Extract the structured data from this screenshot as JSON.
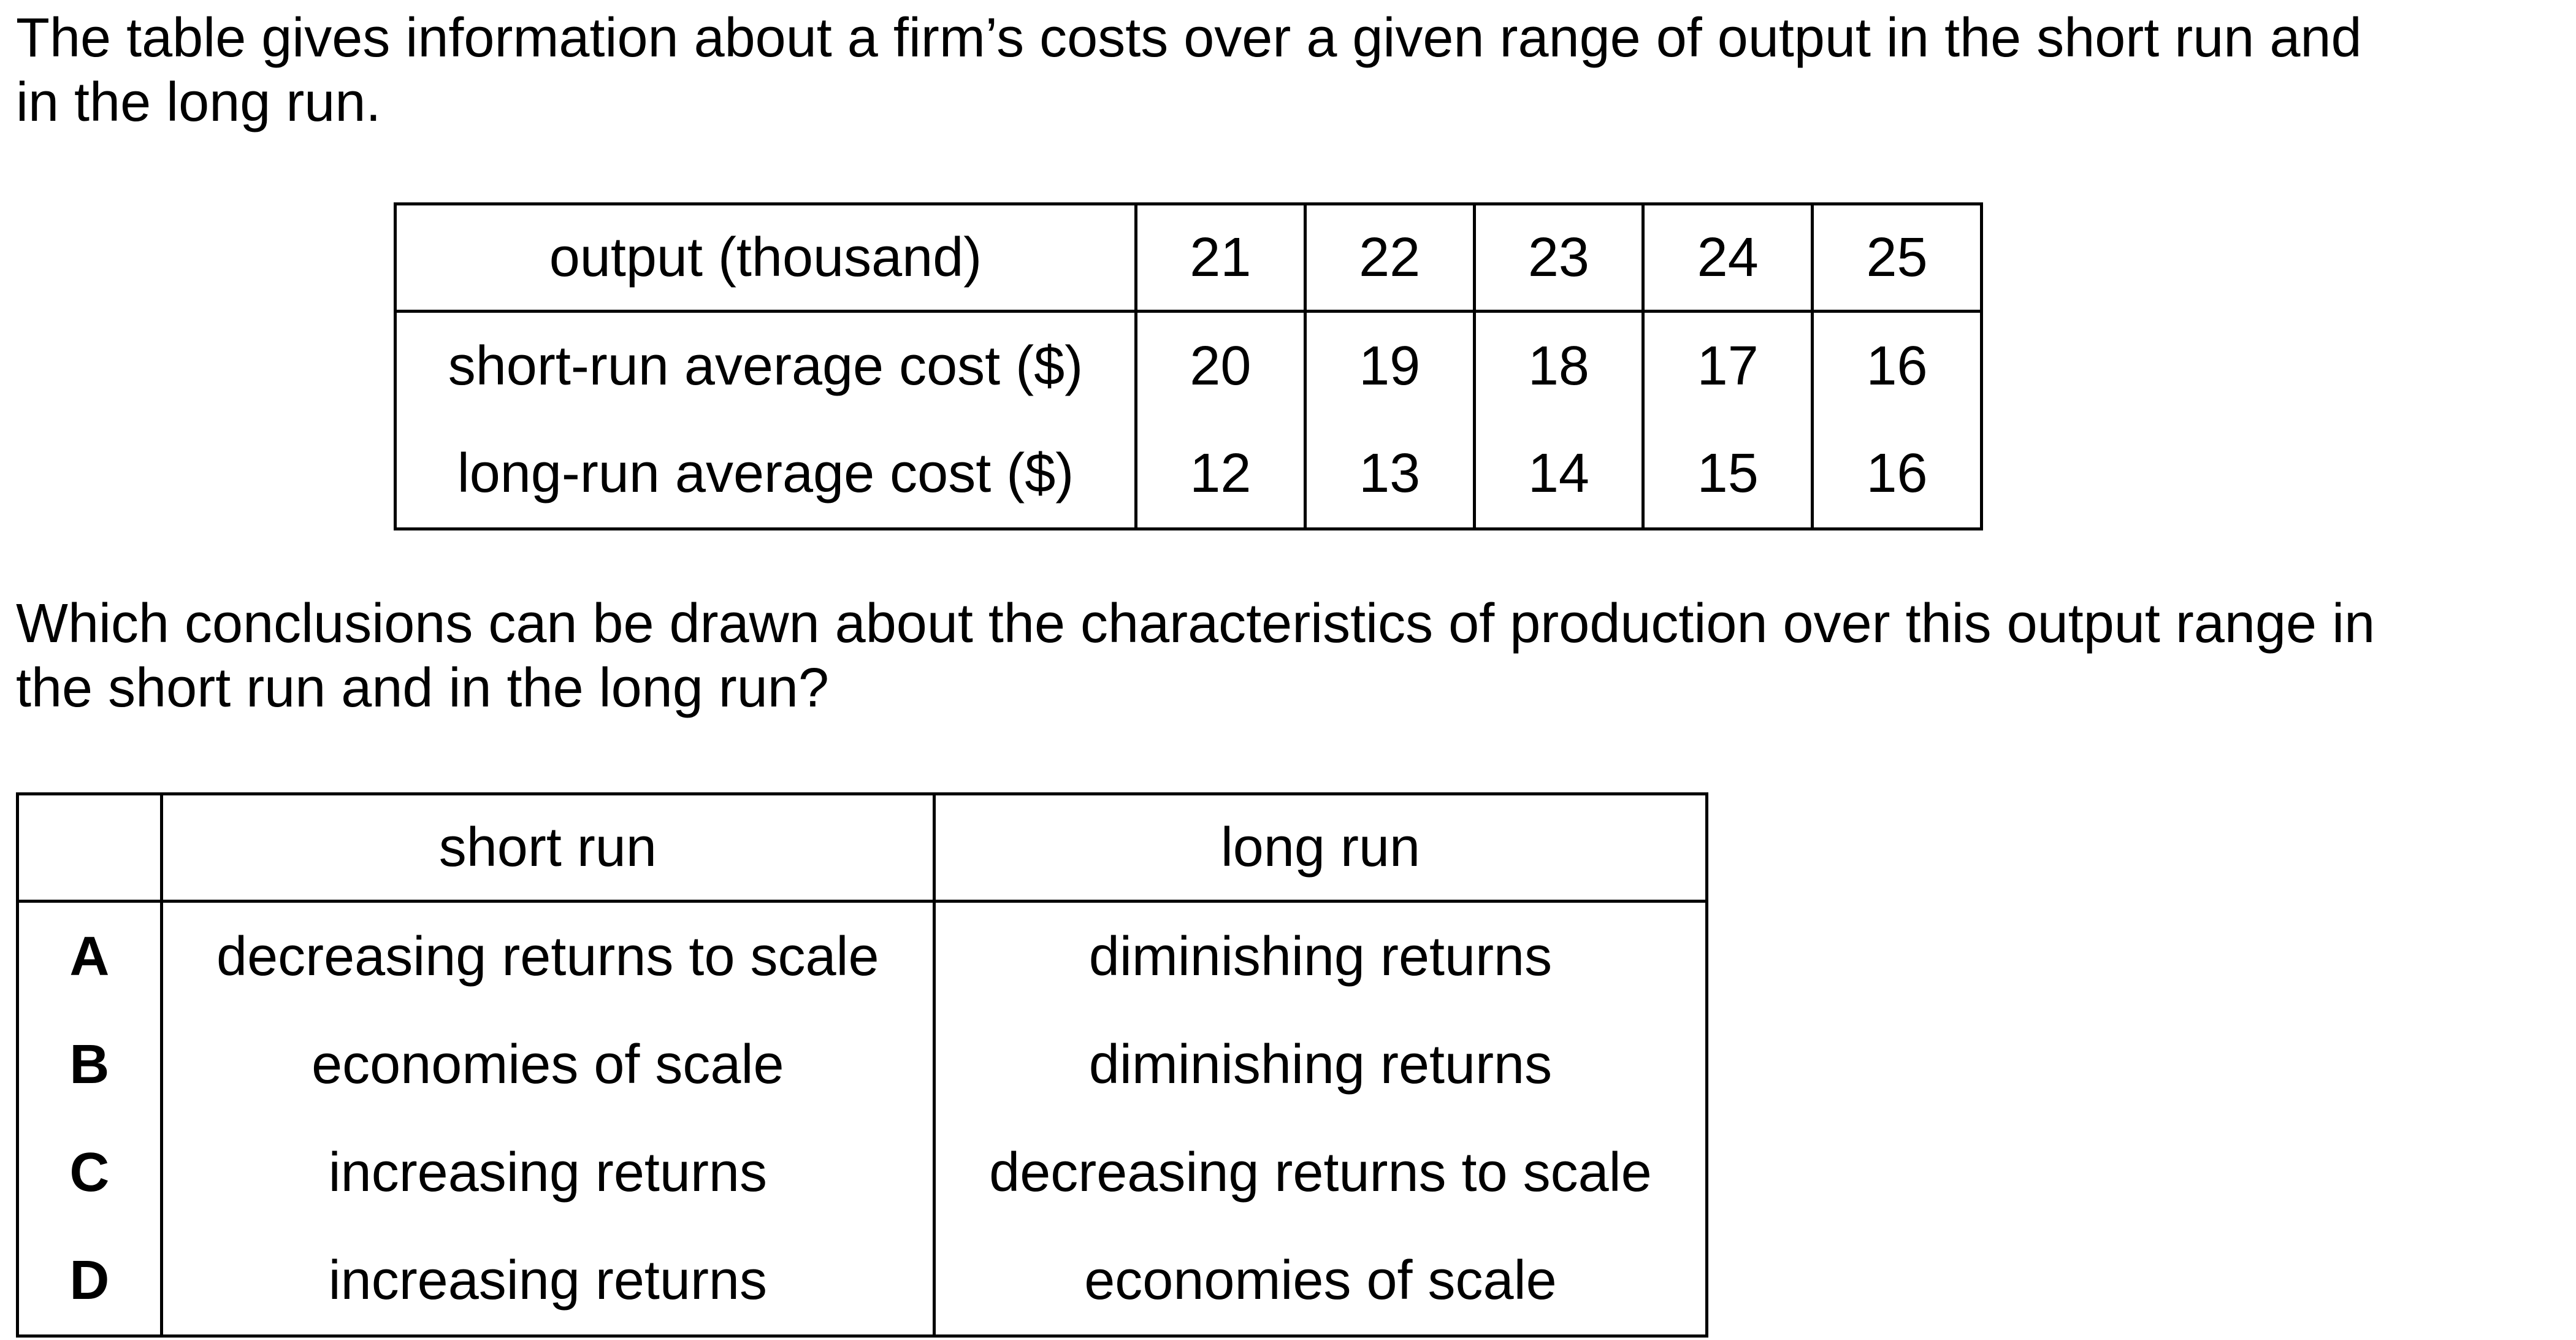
{
  "intro": {
    "line1": "The table gives information about a firm’s costs over a given range of output in the short run and",
    "line2": "in the long run."
  },
  "cost_table": {
    "rows": [
      {
        "label": "output (thousand)",
        "values": [
          "21",
          "22",
          "23",
          "24",
          "25"
        ]
      },
      {
        "label": "short-run average cost ($)",
        "values": [
          "20",
          "19",
          "18",
          "17",
          "16"
        ]
      },
      {
        "label": "long-run average cost ($)",
        "values": [
          "12",
          "13",
          "14",
          "15",
          "16"
        ]
      }
    ]
  },
  "question": {
    "line1": "Which conclusions can be drawn about the characteristics of production over this output range in",
    "line2": "the short run and in the long run?"
  },
  "options_table": {
    "headers": [
      "",
      "short run",
      "long run"
    ],
    "options": [
      {
        "letter": "A",
        "short_run": "decreasing returns to scale",
        "long_run": "diminishing returns"
      },
      {
        "letter": "B",
        "short_run": "economies of scale",
        "long_run": "diminishing returns"
      },
      {
        "letter": "C",
        "short_run": "increasing returns",
        "long_run": "decreasing returns to scale"
      },
      {
        "letter": "D",
        "short_run": "increasing returns",
        "long_run": "economies of scale"
      }
    ]
  }
}
